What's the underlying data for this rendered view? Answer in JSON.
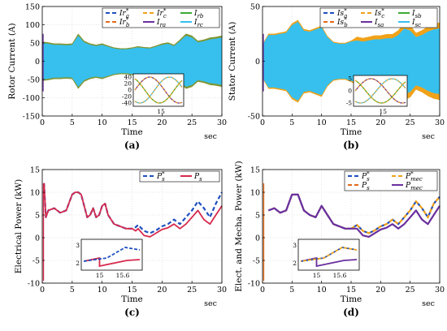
{
  "colors": {
    "dash_blue": "#1f4fbf",
    "dash_orange": "#f0a21a",
    "green": "#3caa35",
    "purple": "#6a2f9e",
    "orange_dash2": "#e06b1a",
    "cyan": "#37c0ee",
    "red": "#d6294c",
    "grid": "#dddddd"
  },
  "chart_data": [
    {
      "id": "a",
      "type": "line",
      "caption": "(a)",
      "xlabel": "Time",
      "xunit": "sec",
      "ylabel": "Rotor Current (A)",
      "xlim": [
        0,
        30
      ],
      "ylim": [
        -150,
        150
      ],
      "xticks": [
        0,
        5,
        10,
        15,
        20,
        25,
        30
      ],
      "yticks": [
        -150,
        -100,
        -50,
        0,
        50,
        100,
        150
      ],
      "legend": [
        "Ir*a",
        "Ir*c",
        "Irb",
        "Ir*b",
        "Ira",
        "Irc"
      ],
      "envelope": {
        "x": [
          0,
          1,
          2,
          3,
          4,
          5,
          6,
          7,
          8,
          9,
          10,
          11,
          12,
          13,
          14,
          15,
          16,
          17,
          18,
          19,
          20,
          21,
          22,
          23,
          24,
          25,
          26,
          27,
          28,
          29,
          30
        ],
        "amp": [
          50,
          48,
          45,
          45,
          44,
          45,
          70,
          52,
          45,
          42,
          45,
          40,
          35,
          33,
          33,
          35,
          38,
          36,
          35,
          40,
          45,
          48,
          42,
          55,
          70,
          65,
          52,
          55,
          60,
          62,
          65
        ]
      },
      "inset": {
        "x_tick": "15",
        "yticks": [
          40,
          20,
          0,
          -20,
          -40
        ]
      }
    },
    {
      "id": "b",
      "type": "line",
      "caption": "(b)",
      "xlabel": "Time",
      "xunit": "sec",
      "ylabel": "Stator Current (A)",
      "xlim": [
        0,
        30
      ],
      "ylim": [
        -50,
        50
      ],
      "xticks": [
        0,
        5,
        10,
        15,
        20,
        25,
        30
      ],
      "yticks": [
        -50,
        0,
        50
      ],
      "legend": [
        "Is*a",
        "Is*c",
        "Isb",
        "Is*b",
        "Isa",
        "Isc"
      ],
      "envelope": {
        "x": [
          0,
          1,
          2,
          3,
          4,
          5,
          6,
          7,
          8,
          9,
          10,
          11,
          12,
          13,
          14,
          15,
          16,
          17,
          18,
          19,
          20,
          21,
          22,
          23,
          24,
          25,
          26,
          27,
          28,
          29,
          30
        ],
        "amp": [
          15,
          24,
          24,
          25,
          26,
          33,
          36,
          28,
          27,
          29,
          31,
          22,
          17,
          16,
          16,
          18,
          19,
          18,
          19,
          20,
          20,
          21,
          21,
          24,
          30,
          28,
          22,
          24,
          27,
          29,
          30
        ]
      },
      "inset": {
        "x_tick": "15",
        "yticks": [
          5,
          0,
          -5
        ]
      }
    },
    {
      "id": "c",
      "type": "line",
      "caption": "(c)",
      "xlabel": "Time",
      "xunit": "sec",
      "ylabel": "Electrical Power (kW)",
      "xlim": [
        0,
        30
      ],
      "ylim": [
        -10,
        15
      ],
      "xticks": [
        0,
        5,
        10,
        15,
        20,
        25,
        30
      ],
      "yticks": [
        -10,
        -5,
        0,
        5,
        10,
        15
      ],
      "legend": [
        "P*s",
        "Ps"
      ],
      "series": [
        {
          "name": "P*s",
          "style": "dash_blue",
          "x": [
            0.3,
            0.6,
            1,
            2,
            3,
            4,
            5,
            5.5,
            6,
            6.5,
            7,
            7.5,
            8,
            8.5,
            9,
            9.5,
            10,
            10.5,
            11,
            12,
            13,
            14,
            15,
            15.6,
            16,
            17,
            18,
            19,
            20,
            21,
            22,
            23,
            24,
            25,
            26,
            27,
            28,
            29,
            30
          ],
          "y": [
            12,
            4.5,
            6.0,
            6.5,
            5.5,
            6.0,
            9.5,
            10,
            10,
            9.5,
            7,
            4.5,
            5.0,
            6.5,
            4.5,
            5.0,
            7.0,
            7.5,
            5.0,
            3.0,
            2.5,
            2.0,
            2.0,
            2.3,
            2.8,
            1.5,
            1.0,
            1.6,
            2.5,
            3.0,
            4.0,
            3.0,
            4.5,
            6.0,
            8.0,
            6.5,
            4.5,
            7.5,
            10
          ]
        },
        {
          "name": "Ps",
          "style": "red",
          "x": [
            0.3,
            0.6,
            1,
            2,
            3,
            4,
            5,
            5.5,
            6,
            6.5,
            7,
            7.5,
            8,
            8.5,
            9,
            9.5,
            10,
            10.5,
            11,
            12,
            13,
            14,
            15,
            15.6,
            16,
            17,
            18,
            19,
            20,
            21,
            22,
            23,
            24,
            25,
            26,
            27,
            28,
            29,
            30
          ],
          "y": [
            12,
            4.5,
            6.0,
            6.5,
            5.5,
            6.0,
            9.5,
            10,
            10,
            9.5,
            7,
            4.5,
            5.0,
            6.5,
            4.5,
            5.0,
            7.0,
            7.5,
            5.0,
            3.0,
            2.5,
            2.0,
            2.0,
            1.5,
            2.0,
            0.5,
            0.2,
            1.0,
            1.8,
            2.2,
            3.0,
            2.0,
            3.0,
            4.5,
            6.0,
            4.0,
            3.0,
            5.0,
            7.0
          ]
        }
      ],
      "inset": {
        "xticks": [
          "15",
          "15.6"
        ],
        "yticks": [
          3,
          2
        ]
      }
    },
    {
      "id": "d",
      "type": "line",
      "caption": "(d)",
      "xlabel": "Time",
      "xunit": "sec",
      "ylabel": "Elect. and Mecha. Power (kW)",
      "xlim": [
        0,
        30
      ],
      "ylim": [
        -10,
        15
      ],
      "xticks": [
        0,
        5,
        10,
        15,
        20,
        25,
        30
      ],
      "yticks": [
        -10,
        -5,
        0,
        5,
        10,
        15
      ],
      "legend": [
        "P*s",
        "P*mec",
        "Ps",
        "Pmec"
      ],
      "series": [
        {
          "name": "P*s",
          "style": "dash_blue",
          "x": [
            1,
            2,
            3,
            4,
            5,
            6,
            7,
            8,
            9,
            10,
            11,
            12,
            13,
            14,
            15,
            16,
            17,
            18,
            19,
            20,
            21,
            22,
            23,
            24,
            25,
            26,
            27,
            28,
            29,
            30
          ],
          "y": [
            6.0,
            6.5,
            5.5,
            6.0,
            9.5,
            9.5,
            6,
            5,
            4.5,
            7.0,
            5.0,
            3.0,
            2.5,
            2.0,
            2.0,
            2.8,
            1.5,
            1.0,
            1.6,
            2.5,
            3.0,
            4.0,
            3.0,
            4.5,
            6.0,
            8.0,
            6.5,
            4.5,
            7.5,
            9.0
          ]
        },
        {
          "name": "Pmec",
          "style": "purple",
          "x": [
            1,
            2,
            3,
            4,
            5,
            6,
            7,
            8,
            9,
            10,
            11,
            12,
            13,
            14,
            15,
            16,
            17,
            18,
            19,
            20,
            21,
            22,
            23,
            24,
            25,
            26,
            27,
            28,
            29,
            30
          ],
          "y": [
            6.0,
            6.5,
            5.5,
            6.0,
            9.5,
            9.5,
            6,
            5,
            4.5,
            7.0,
            5.0,
            3.0,
            2.5,
            2.0,
            2.0,
            2.0,
            0.5,
            0.2,
            1.0,
            1.8,
            2.2,
            3.0,
            2.0,
            3.0,
            4.5,
            6.0,
            4.0,
            3.0,
            5.0,
            7.0
          ]
        }
      ],
      "inset": {
        "xticks": [
          "15",
          "15.6"
        ],
        "yticks": [
          3,
          2
        ]
      }
    }
  ]
}
